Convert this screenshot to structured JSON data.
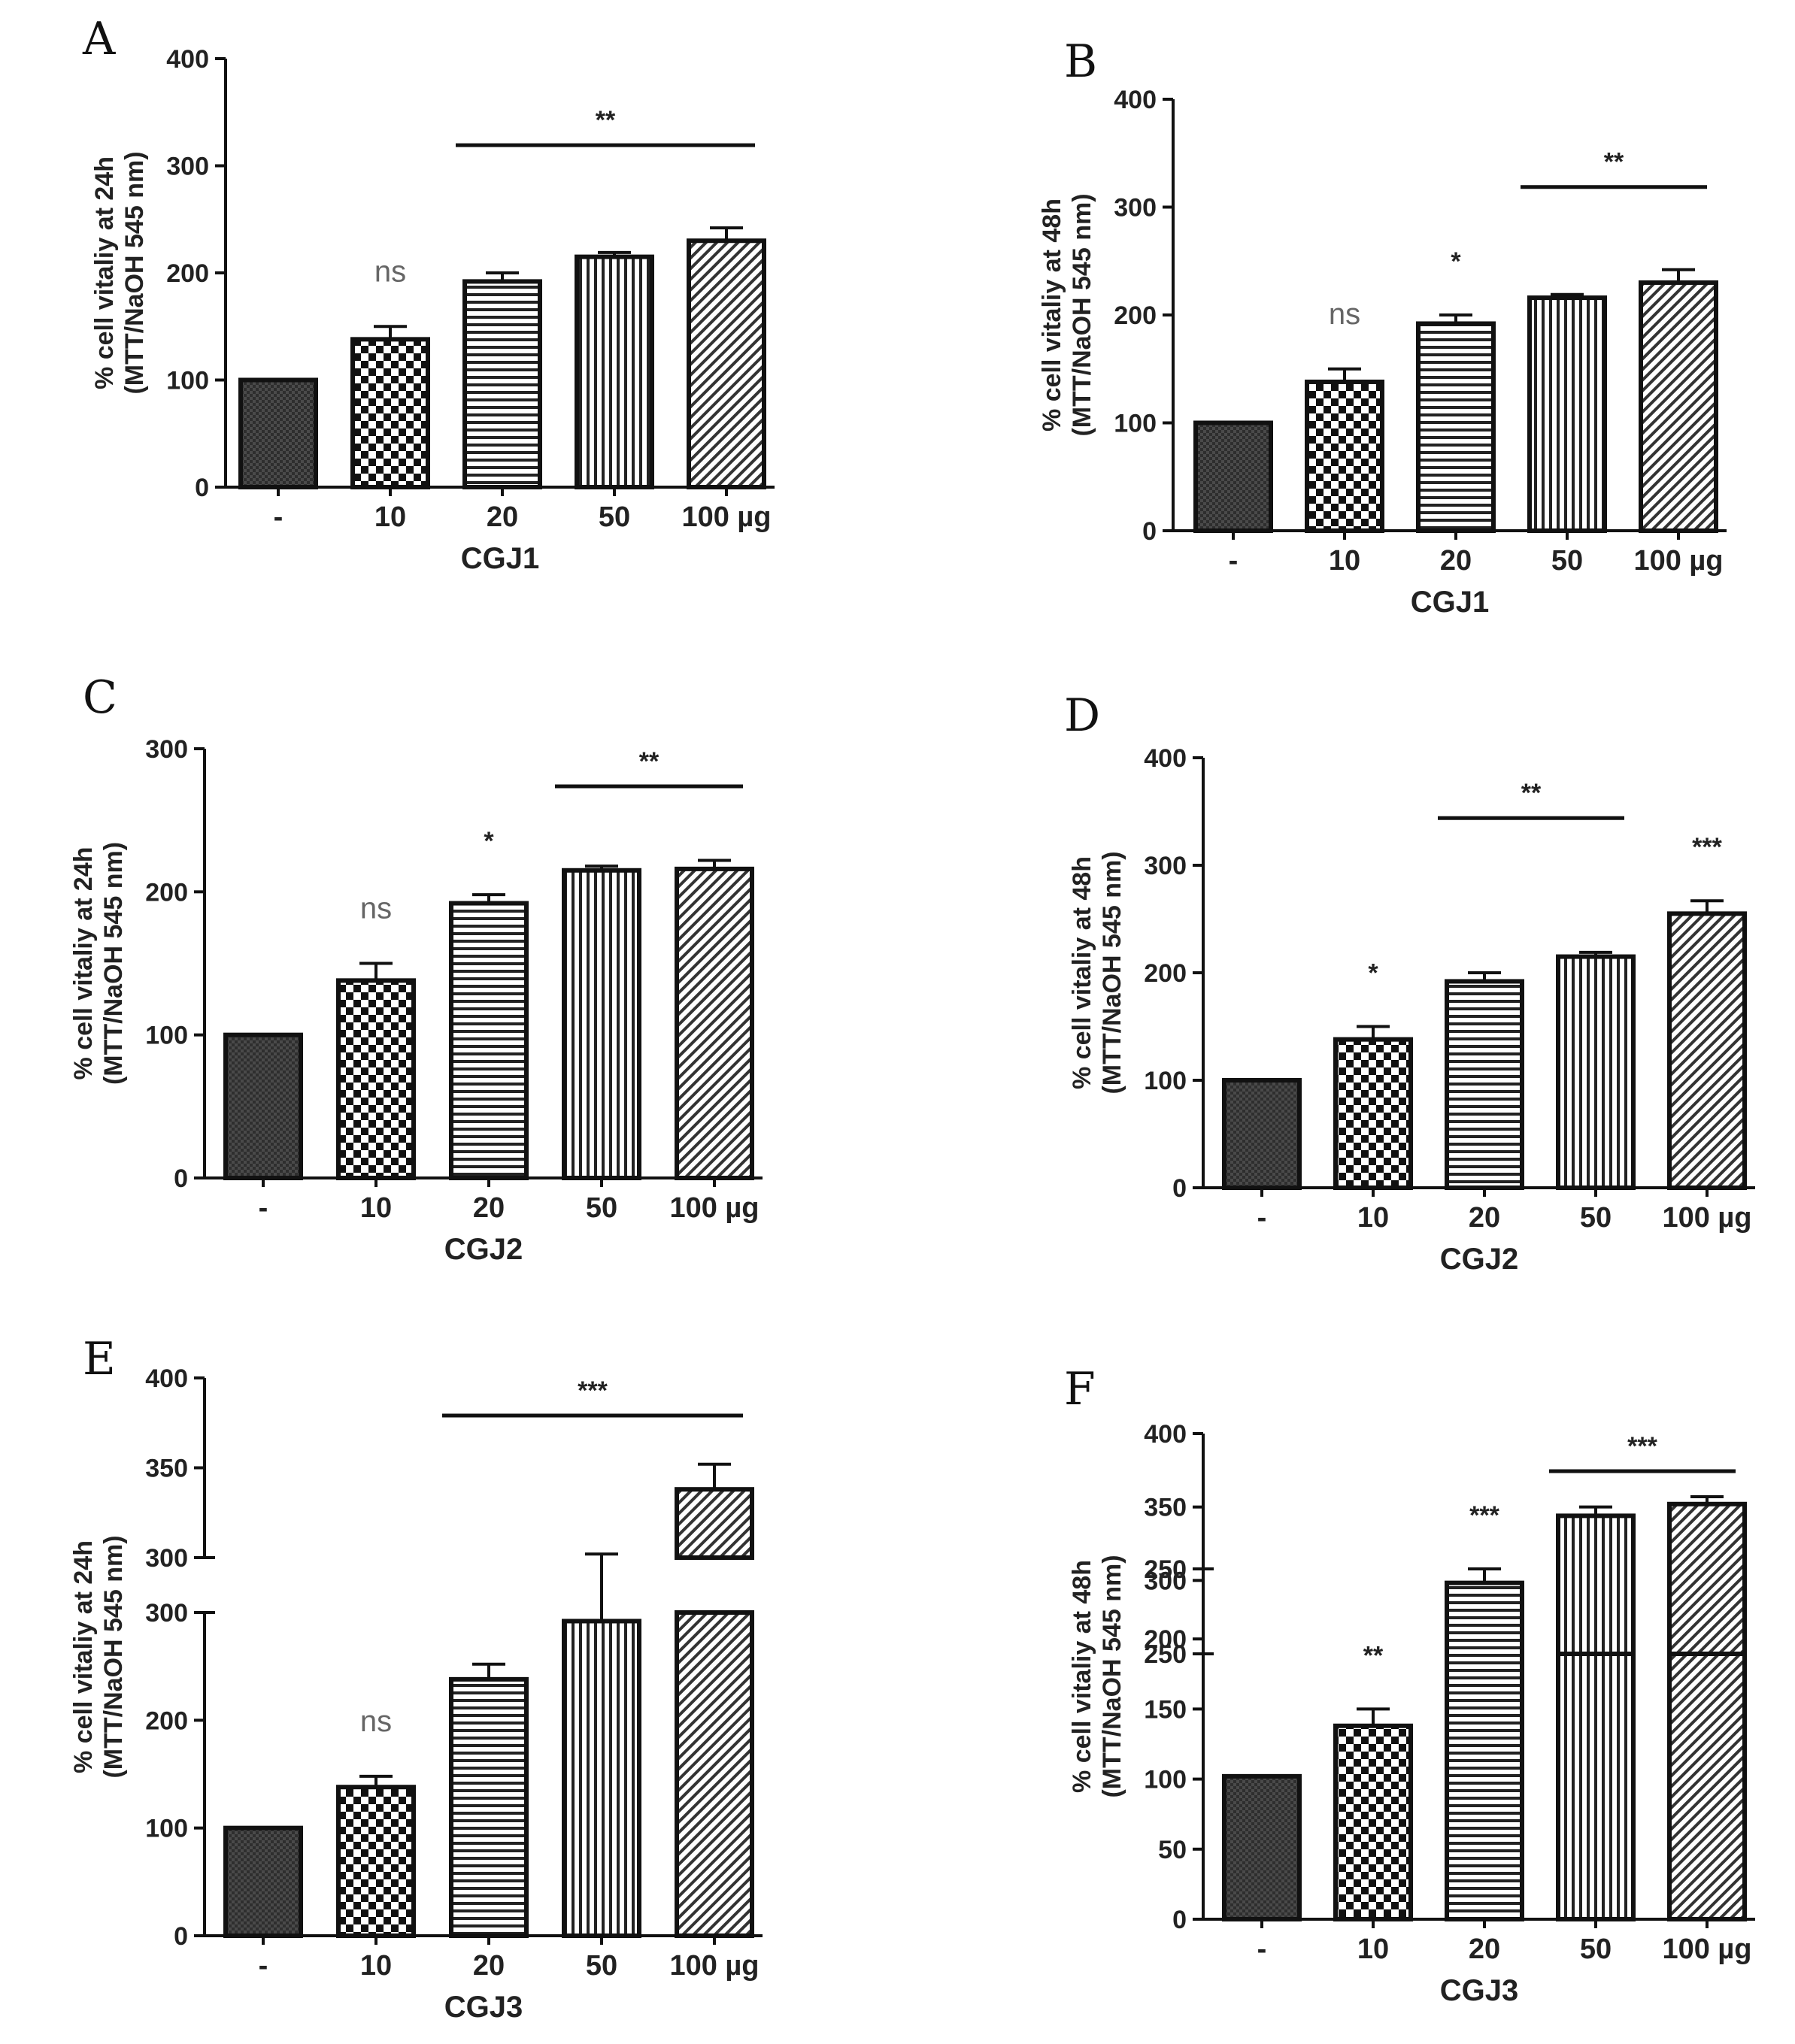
{
  "chart_data": [
    {
      "panel": "A",
      "type": "bar",
      "ylabel": [
        "% cell vitaliy at 24h",
        "(MTT/NaOH 545 nm)"
      ],
      "xlabel": "CGJ1",
      "categories": [
        "-",
        "10",
        "20",
        "50",
        "100 µg"
      ],
      "values": [
        100,
        138,
        192,
        215,
        230
      ],
      "errors": [
        0,
        12,
        8,
        4,
        12
      ],
      "patterns": [
        "dense",
        "checker",
        "hlines",
        "vlines",
        "diag"
      ],
      "ylim": [
        0,
        400
      ],
      "yticks": [
        "0",
        "100",
        "200",
        "300",
        "400"
      ],
      "sig_bars": [
        {
          "from": 2,
          "to": 4,
          "label": "**"
        }
      ],
      "bar_labels": [
        {
          "index": 1,
          "label": "ns"
        }
      ]
    },
    {
      "panel": "B",
      "type": "bar",
      "ylabel": [
        "% cell vitaliy at 48h",
        "(MTT/NaOH 545 nm)"
      ],
      "xlabel": "CGJ1",
      "categories": [
        "-",
        "10",
        "20",
        "50",
        "100 µg"
      ],
      "values": [
        100,
        138,
        192,
        216,
        230
      ],
      "errors": [
        0,
        12,
        8,
        3,
        12
      ],
      "patterns": [
        "dense",
        "checker",
        "hlines",
        "vlines",
        "diag"
      ],
      "ylim": [
        0,
        400
      ],
      "yticks": [
        "0",
        "100",
        "200",
        "300",
        "400"
      ],
      "sig_bars": [
        {
          "from": 3,
          "to": 4,
          "label": "**"
        }
      ],
      "bar_labels": [
        {
          "index": 1,
          "label": "ns"
        },
        {
          "index": 2,
          "label": "*"
        }
      ]
    },
    {
      "panel": "C",
      "type": "bar",
      "ylabel": [
        "% cell vitaliy at 24h",
        "(MTT/NaOH 545 nm)"
      ],
      "xlabel": "CGJ2",
      "categories": [
        "-",
        "10",
        "20",
        "50",
        "100 µg"
      ],
      "values": [
        100,
        138,
        192,
        215,
        216
      ],
      "errors": [
        0,
        12,
        6,
        3,
        6
      ],
      "patterns": [
        "dense",
        "checker",
        "hlines",
        "vlines",
        "diag"
      ],
      "ylim": [
        0,
        300
      ],
      "yticks": [
        "0",
        "100",
        "200",
        "300"
      ],
      "sig_bars": [
        {
          "from": 3,
          "to": 4,
          "label": "**"
        }
      ],
      "bar_labels": [
        {
          "index": 1,
          "label": "ns"
        },
        {
          "index": 2,
          "label": "*"
        }
      ]
    },
    {
      "panel": "D",
      "type": "bar",
      "ylabel": [
        "% cell vitaliy at 48h",
        "(MTT/NaOH 545 nm)"
      ],
      "xlabel": "CGJ2",
      "categories": [
        "-",
        "10",
        "20",
        "50",
        "100 µg"
      ],
      "values": [
        100,
        138,
        192,
        215,
        255
      ],
      "errors": [
        0,
        12,
        8,
        4,
        12
      ],
      "patterns": [
        "dense",
        "checker",
        "hlines",
        "vlines",
        "diag"
      ],
      "ylim": [
        0,
        400
      ],
      "yticks": [
        "0",
        "100",
        "200",
        "300",
        "400"
      ],
      "sig_bars": [
        {
          "from": 2,
          "to": 3,
          "label": "**"
        }
      ],
      "bar_labels": [
        {
          "index": 1,
          "label": "*"
        },
        {
          "index": 4,
          "label": "***"
        }
      ]
    },
    {
      "panel": "E",
      "type": "bar",
      "broken_axis": true,
      "ylabel": [
        "% cell vitaliy at 24h",
        "(MTT/NaOH 545 nm)"
      ],
      "xlabel": "CGJ3",
      "categories": [
        "-",
        "10",
        "20",
        "50",
        "100 µg"
      ],
      "values": [
        100,
        138,
        238,
        292,
        338
      ],
      "errors": [
        0,
        10,
        14,
        10,
        14
      ],
      "patterns": [
        "dense",
        "checker",
        "hlines",
        "vlines",
        "diag"
      ],
      "lower_ylim": [
        0,
        300
      ],
      "lower_yticks": [
        "0",
        "100",
        "200",
        "300"
      ],
      "upper_ylim": [
        300,
        400
      ],
      "upper_yticks": [
        "300",
        "350",
        "400"
      ],
      "sig_bars": [
        {
          "from": 2,
          "to": 4,
          "label": "***"
        }
      ],
      "bar_labels": [
        {
          "index": 1,
          "label": "ns"
        }
      ]
    },
    {
      "panel": "F",
      "type": "bar",
      "broken_axis": true,
      "ylabel": [
        "% cell vitaliy at 48h",
        "(MTT/NaOH 545 nm)"
      ],
      "xlabel": "CGJ3",
      "categories": [
        "-",
        "10",
        "20",
        "50",
        "100 µg"
      ],
      "values": [
        102,
        138,
        240,
        344,
        352
      ],
      "errors": [
        0,
        12,
        10,
        6,
        5
      ],
      "patterns": [
        "dense",
        "checker",
        "hlines",
        "vlines",
        "diag"
      ],
      "lower_ylim": [
        0,
        250
      ],
      "lower_yticks": [
        "0",
        "50",
        "100",
        "150",
        "200",
        "250"
      ],
      "upper_ylim": [
        250,
        400
      ],
      "upper_yticks": [
        "250",
        "300",
        "350",
        "400"
      ],
      "sig_bars": [
        {
          "from": 3,
          "to": 4,
          "label": "***"
        }
      ],
      "bar_labels": [
        {
          "index": 1,
          "label": "**"
        },
        {
          "index": 2,
          "label": "***"
        }
      ]
    }
  ]
}
